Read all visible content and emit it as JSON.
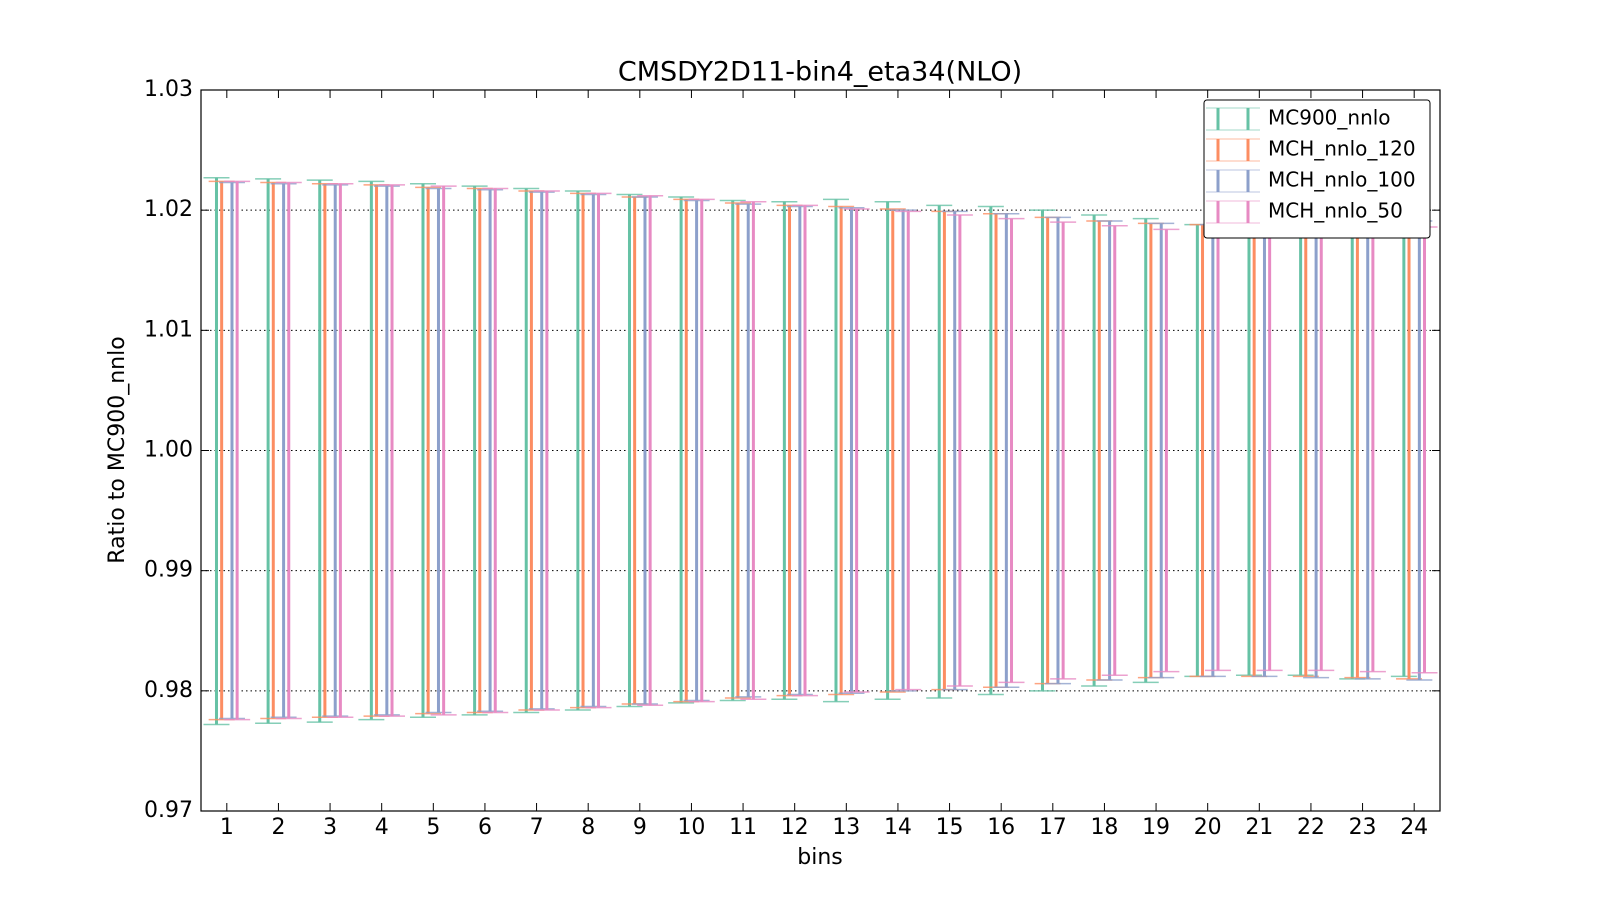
{
  "chart_data": {
    "type": "errorbar",
    "title": "CMSDY2D11-bin4_eta34(NLO)",
    "xlabel": "bins",
    "ylabel": "Ratio to MC900_nnlo",
    "x": [
      1,
      2,
      3,
      4,
      5,
      6,
      7,
      8,
      9,
      10,
      11,
      12,
      13,
      14,
      15,
      16,
      17,
      18,
      19,
      20,
      21,
      22,
      23,
      24
    ],
    "xlim": [
      0.5,
      24.5
    ],
    "xticks": [
      1,
      2,
      3,
      4,
      5,
      6,
      7,
      8,
      9,
      10,
      11,
      12,
      13,
      14,
      15,
      16,
      17,
      18,
      19,
      20,
      21,
      22,
      23,
      24
    ],
    "ylim": [
      0.97,
      1.03
    ],
    "yticks": [
      0.97,
      0.98,
      0.99,
      {
        "value": 1,
        "label": "1.00"
      },
      1.01,
      1.02,
      1.03
    ],
    "grid": true,
    "legend": "upper right",
    "series": [
      {
        "name": "MC900_nnlo",
        "color": "#66c2a5",
        "low": [
          0.9772,
          0.9773,
          0.9774,
          0.9776,
          0.9778,
          0.978,
          0.9782,
          0.9784,
          0.9787,
          0.979,
          0.9792,
          0.9793,
          0.9791,
          0.9793,
          0.9794,
          0.9797,
          0.98,
          0.9804,
          0.9807,
          0.9812,
          0.9813,
          0.9813,
          0.981,
          0.9812
        ],
        "high": [
          1.0227,
          1.0226,
          1.0225,
          1.0224,
          1.0222,
          1.022,
          1.0218,
          1.0216,
          1.0213,
          1.0211,
          1.0208,
          1.0207,
          1.0209,
          1.0207,
          1.0204,
          1.0203,
          1.02,
          1.0196,
          1.0193,
          1.0188,
          1.0187,
          1.0187,
          1.0187,
          1.0188
        ]
      },
      {
        "name": "MCH_nnlo_120",
        "color": "#fc8d62",
        "low": [
          0.9776,
          0.9777,
          0.9778,
          0.9779,
          0.9781,
          0.9782,
          0.9784,
          0.9786,
          0.9789,
          0.9791,
          0.9794,
          0.9796,
          0.9797,
          0.9799,
          0.9801,
          0.9803,
          0.9806,
          0.9809,
          0.9811,
          0.9812,
          0.9812,
          0.9812,
          0.9811,
          0.981
        ],
        "high": [
          1.0224,
          1.0223,
          1.0222,
          1.0221,
          1.0219,
          1.0218,
          1.0216,
          1.0214,
          1.0211,
          1.0209,
          1.0206,
          1.0204,
          1.0203,
          1.0201,
          1.0199,
          1.0197,
          1.0194,
          1.0191,
          1.0189,
          1.0188,
          1.0188,
          1.0188,
          1.0189,
          1.019
        ]
      },
      {
        "name": "MCH_nnlo_100",
        "color": "#8da0cb",
        "low": [
          0.9777,
          0.9778,
          0.9779,
          0.978,
          0.9782,
          0.9783,
          0.9785,
          0.9787,
          0.9789,
          0.9792,
          0.9795,
          0.9797,
          0.9798,
          0.98,
          0.9801,
          0.9803,
          0.9806,
          0.9809,
          0.9811,
          0.9812,
          0.9812,
          0.9811,
          0.981,
          0.9809
        ],
        "high": [
          1.0223,
          1.0222,
          1.0221,
          1.022,
          1.0218,
          1.0217,
          1.0215,
          1.0213,
          1.0211,
          1.0208,
          1.0205,
          1.0203,
          1.0202,
          1.02,
          1.0199,
          1.0197,
          1.0194,
          1.0191,
          1.0189,
          1.0188,
          1.0188,
          1.0189,
          1.019,
          1.0191
        ]
      },
      {
        "name": "MCH_nnlo_50",
        "color": "#e78ac3",
        "low": [
          0.9776,
          0.9777,
          0.9778,
          0.9779,
          0.978,
          0.9782,
          0.9784,
          0.9786,
          0.9788,
          0.9791,
          0.9793,
          0.9796,
          0.9799,
          0.9801,
          0.9804,
          0.9807,
          0.981,
          0.9813,
          0.9816,
          0.9817,
          0.9817,
          0.9817,
          0.9816,
          0.9815
        ],
        "high": [
          1.0224,
          1.0223,
          1.0222,
          1.0221,
          1.022,
          1.0218,
          1.0216,
          1.0214,
          1.0212,
          1.0209,
          1.0207,
          1.0204,
          1.0201,
          1.0199,
          1.0196,
          1.0193,
          1.019,
          1.0187,
          1.0184,
          1.0183,
          1.0183,
          1.0183,
          1.0184,
          1.0186
        ]
      }
    ]
  }
}
